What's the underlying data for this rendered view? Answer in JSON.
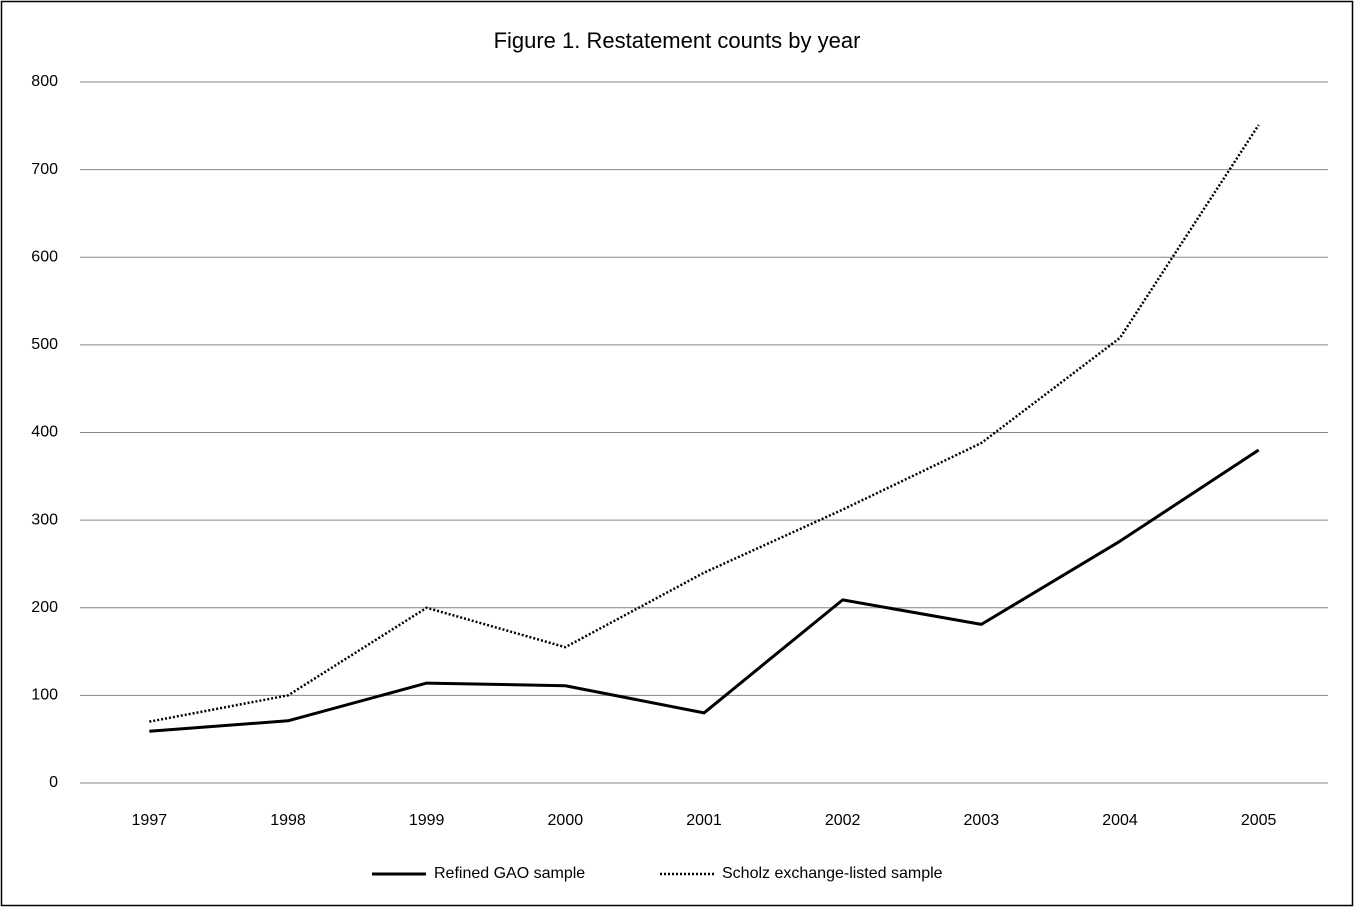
{
  "chart_data": {
    "type": "line",
    "title": "Figure 1. Restatement counts by year",
    "categories": [
      "1997",
      "1998",
      "1999",
      "2000",
      "2001",
      "2002",
      "2003",
      "2004",
      "2005"
    ],
    "series": [
      {
        "name": "Refined GAO sample",
        "color": "#000000",
        "dash": "solid",
        "values": [
          59,
          71,
          114,
          111,
          80,
          209,
          181,
          276,
          380
        ]
      },
      {
        "name": "Scholz exchange-listed sample",
        "color": "#000000",
        "dash": "dotted",
        "values": [
          70,
          100,
          200,
          155,
          240,
          312,
          388,
          508,
          751
        ]
      }
    ],
    "ylim": [
      0,
      800
    ],
    "yticks": [
      0,
      100,
      200,
      300,
      400,
      500,
      600,
      700,
      800
    ],
    "grid": true,
    "legend": "bottom"
  }
}
